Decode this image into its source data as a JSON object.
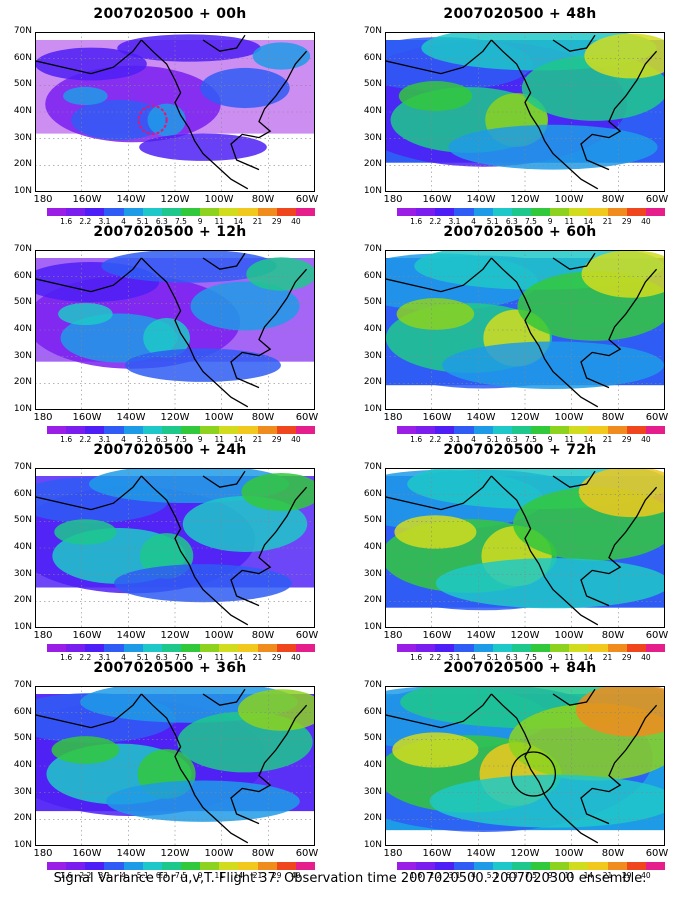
{
  "footer": "Signal Variance for u,v,T. Flight 37. Observation time 2007020500. 2007020300 ensemble.",
  "lat_labels": [
    "70N",
    "60N",
    "50N",
    "40N",
    "30N",
    "20N",
    "10N"
  ],
  "lon_labels": [
    "180",
    "160W",
    "140W",
    "120W",
    "100W",
    "80W",
    "60W"
  ],
  "colorbar": {
    "labels": [
      "1.6",
      "2.2",
      "3.1",
      "4",
      "5.1",
      "6.3",
      "7.5",
      "9",
      "11",
      "14",
      "21",
      "29",
      "40"
    ],
    "colors": [
      "#9b1ee6",
      "#7a1ef0",
      "#4d1ef5",
      "#2f5cf5",
      "#1e9be6",
      "#1ec8c8",
      "#1ec88c",
      "#32c83c",
      "#8cd21e",
      "#d2dc1e",
      "#f0c81e",
      "#f08c1e",
      "#f0461e",
      "#e61e8c"
    ]
  },
  "panels": [
    {
      "id": "p00",
      "title": "2007020500 + 00h",
      "level": 0.1
    },
    {
      "id": "p48",
      "title": "2007020500 + 48h",
      "level": 0.62
    },
    {
      "id": "p12",
      "title": "2007020500 + 12h",
      "level": 0.28
    },
    {
      "id": "p60",
      "title": "2007020500 + 60h",
      "level": 0.7
    },
    {
      "id": "p24",
      "title": "2007020500 + 24h",
      "level": 0.42
    },
    {
      "id": "p72",
      "title": "2007020500 + 72h",
      "level": 0.78
    },
    {
      "id": "p36",
      "title": "2007020500 + 36h",
      "level": 0.52
    },
    {
      "id": "p84",
      "title": "2007020500 + 84h",
      "level": 0.86
    }
  ]
}
